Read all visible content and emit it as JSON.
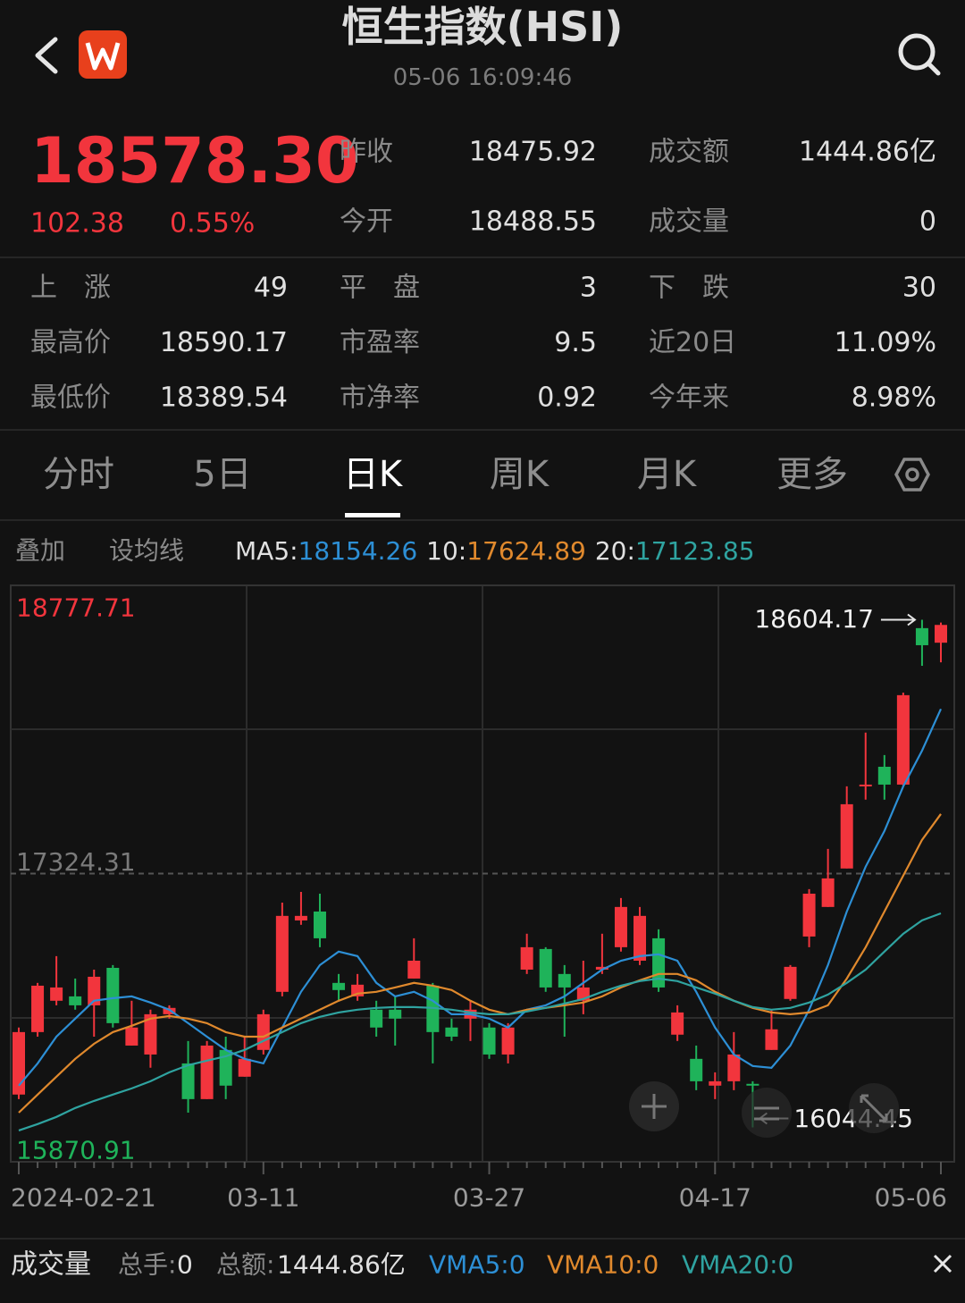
{
  "header": {
    "title": "恒生指数(HSI)",
    "time": "05-06 16:09:46"
  },
  "quote": {
    "price": "18578.30",
    "change": "102.38",
    "change_pct": "0.55%",
    "stats": [
      [
        "昨收",
        "18475.92",
        "成交额",
        "1444.86亿"
      ],
      [
        "今开",
        "18488.55",
        "成交量",
        "0"
      ]
    ]
  },
  "stats_grid": [
    [
      "上　涨",
      "49",
      "平　盘",
      "3",
      "下　跌",
      "30"
    ],
    [
      "最高价",
      "18590.17",
      "市盈率",
      "9.5",
      "近20日",
      "11.09%"
    ],
    [
      "最低价",
      "18389.54",
      "市净率",
      "0.92",
      "今年来",
      "8.98%"
    ]
  ],
  "tabs": {
    "items": [
      "分时",
      "5日",
      "日K",
      "周K",
      "月K",
      "更多"
    ],
    "active_index": 2
  },
  "toolbar": {
    "items": [
      "叠加",
      "设均线"
    ]
  },
  "chart_data": {
    "type": "candlestick",
    "categories": [
      "2024-02-21",
      null,
      null,
      null,
      null,
      null,
      null,
      null,
      null,
      null,
      null,
      null,
      null,
      "03-11",
      null,
      null,
      null,
      null,
      null,
      null,
      null,
      null,
      null,
      null,
      null,
      "03-27",
      null,
      null,
      null,
      null,
      null,
      null,
      null,
      null,
      null,
      null,
      null,
      "04-17",
      null,
      null,
      null,
      null,
      null,
      null,
      null,
      null,
      null,
      null,
      null,
      "05-06"
    ],
    "open": [
      16210,
      16525,
      16683,
      16705,
      16660,
      16849,
      16457,
      16412,
      16615,
      16367,
      16187,
      16435,
      16300,
      16435,
      16728,
      17088,
      17133,
      16773,
      16705,
      16638,
      16638,
      16795,
      16759,
      16548,
      16593,
      16548,
      16412,
      16840,
      16944,
      16818,
      16683,
      16840,
      16953,
      16885,
      16998,
      16512,
      16390,
      16255,
      16277,
      16264,
      16435,
      16692,
      17007,
      17156,
      17350,
      17764,
      17863,
      17773,
      18562,
      18488.55
    ],
    "high": [
      16548,
      16773,
      16908,
      16795,
      16840,
      16863,
      16683,
      16638,
      16660,
      16480,
      16480,
      16502,
      16502,
      16638,
      17178,
      17232,
      17223,
      16818,
      16818,
      16683,
      16705,
      16998,
      16773,
      16593,
      16683,
      16570,
      16570,
      17021,
      16953,
      16863,
      16885,
      17021,
      17201,
      17156,
      17043,
      16660,
      16457,
      16322,
      16525,
      16277,
      16638,
      16863,
      17246,
      17449,
      17764,
      18035,
      17922,
      18237,
      18604.17,
      18590.17
    ],
    "low": [
      16187,
      16502,
      16660,
      16638,
      16502,
      16548,
      16457,
      16345,
      16593,
      16119,
      16187,
      16187,
      16300,
      16412,
      16705,
      17066,
      16953,
      16683,
      16683,
      16502,
      16457,
      16795,
      16367,
      16480,
      16480,
      16390,
      16367,
      16818,
      16728,
      16502,
      16615,
      16818,
      16931,
      16863,
      16728,
      16480,
      16232,
      16187,
      16232,
      16044.45,
      16435,
      16683,
      16953,
      17156,
      17350,
      17697,
      17697,
      17764,
      18372,
      18389.54
    ],
    "close": [
      16525,
      16759,
      16750,
      16660,
      16804,
      16570,
      16548,
      16615,
      16647,
      16187,
      16457,
      16255,
      16390,
      16615,
      17111,
      17111,
      16998,
      16737,
      16764,
      16548,
      16593,
      16885,
      16525,
      16502,
      16638,
      16412,
      16548,
      16953,
      16750,
      16750,
      16750,
      16854,
      17156,
      17111,
      16750,
      16624,
      16277,
      16277,
      16412,
      16255,
      16539,
      16854,
      17223,
      17300,
      17674,
      17773,
      17773,
      18224,
      18475.92,
      18578.3
    ],
    "up_color": "#f2353d",
    "down_color": "#1fb35a",
    "ylim": [
      15870.91,
      18777.71
    ],
    "yticks": [
      15870.91,
      17324.31,
      18777.71
    ],
    "ytick_colors": [
      "#1fb35a",
      "#7a7a7a",
      "#f2353d"
    ],
    "series": [
      {
        "name": "MA5:",
        "color": "#2d8fd5",
        "values": [
          16255,
          16367,
          16502,
          16593,
          16683,
          16696,
          16705,
          16674,
          16638,
          16570,
          16502,
          16435,
          16390,
          16367,
          16548,
          16728,
          16863,
          16931,
          16908,
          16773,
          16705,
          16728,
          16683,
          16615,
          16615,
          16593,
          16548,
          16638,
          16660,
          16705,
          16773,
          16840,
          16885,
          16908,
          16917,
          16885,
          16728,
          16548,
          16412,
          16354,
          16345,
          16457,
          16638,
          16863,
          17133,
          17359,
          17539,
          17764,
          17944,
          18154.26
        ]
      },
      {
        "name": "10:",
        "color": "#e0892d",
        "values": [
          16119,
          16210,
          16300,
          16390,
          16466,
          16525,
          16557,
          16593,
          16606,
          16593,
          16570,
          16525,
          16502,
          16502,
          16548,
          16593,
          16638,
          16683,
          16719,
          16728,
          16750,
          16773,
          16759,
          16737,
          16683,
          16638,
          16615,
          16638,
          16647,
          16660,
          16674,
          16705,
          16750,
          16786,
          16818,
          16818,
          16786,
          16728,
          16683,
          16647,
          16624,
          16615,
          16624,
          16660,
          16795,
          16953,
          17133,
          17314,
          17494,
          17624.89
        ]
      },
      {
        "name": "20:",
        "color": "#2fa3a0",
        "values": [
          16029,
          16061,
          16097,
          16142,
          16178,
          16210,
          16241,
          16277,
          16322,
          16358,
          16381,
          16403,
          16435,
          16480,
          16525,
          16570,
          16602,
          16624,
          16638,
          16647,
          16651,
          16651,
          16647,
          16638,
          16624,
          16615,
          16615,
          16629,
          16647,
          16669,
          16692,
          16728,
          16759,
          16782,
          16795,
          16782,
          16750,
          16719,
          16683,
          16651,
          16638,
          16647,
          16674,
          16714,
          16773,
          16840,
          16931,
          17021,
          17088,
          17123.85
        ]
      }
    ]
  },
  "volume_bar": {
    "title": "成交量",
    "pairs": [
      [
        "总手:",
        "0"
      ],
      [
        "总额:",
        "1444.86亿"
      ]
    ],
    "indicators": [
      {
        "text": "VMA5:0",
        "color": "#2d8fd5"
      },
      {
        "text": "VMA10:0",
        "color": "#e0892d"
      },
      {
        "text": "VMA20:0",
        "color": "#2fa3a0"
      }
    ]
  }
}
